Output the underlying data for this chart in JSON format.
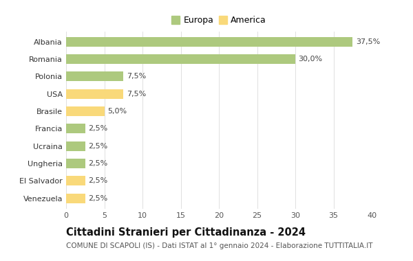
{
  "countries": [
    "Albania",
    "Romania",
    "Polonia",
    "USA",
    "Brasile",
    "Francia",
    "Ucraina",
    "Ungheria",
    "El Salvador",
    "Venezuela"
  ],
  "values": [
    37.5,
    30.0,
    7.5,
    7.5,
    5.0,
    2.5,
    2.5,
    2.5,
    2.5,
    2.5
  ],
  "labels": [
    "37,5%",
    "30,0%",
    "7,5%",
    "7,5%",
    "5,0%",
    "2,5%",
    "2,5%",
    "2,5%",
    "2,5%",
    "2,5%"
  ],
  "colors": [
    "#adc97e",
    "#adc97e",
    "#adc97e",
    "#f9d97a",
    "#f9d97a",
    "#adc97e",
    "#adc97e",
    "#adc97e",
    "#f9d97a",
    "#f9d97a"
  ],
  "europa_color": "#adc97e",
  "america_color": "#f9d97a",
  "xlim": [
    0,
    40
  ],
  "xticks": [
    0,
    5,
    10,
    15,
    20,
    25,
    30,
    35,
    40
  ],
  "title": "Cittadini Stranieri per Cittadinanza - 2024",
  "subtitle": "COMUNE DI SCAPOLI (IS) - Dati ISTAT al 1° gennaio 2024 - Elaborazione TUTTITALIA.IT",
  "legend_europa": "Europa",
  "legend_america": "America",
  "background_color": "#ffffff",
  "grid_color": "#e0e0e0",
  "bar_height": 0.55,
  "title_fontsize": 10.5,
  "subtitle_fontsize": 7.5,
  "tick_fontsize": 8,
  "label_fontsize": 8,
  "legend_fontsize": 9
}
